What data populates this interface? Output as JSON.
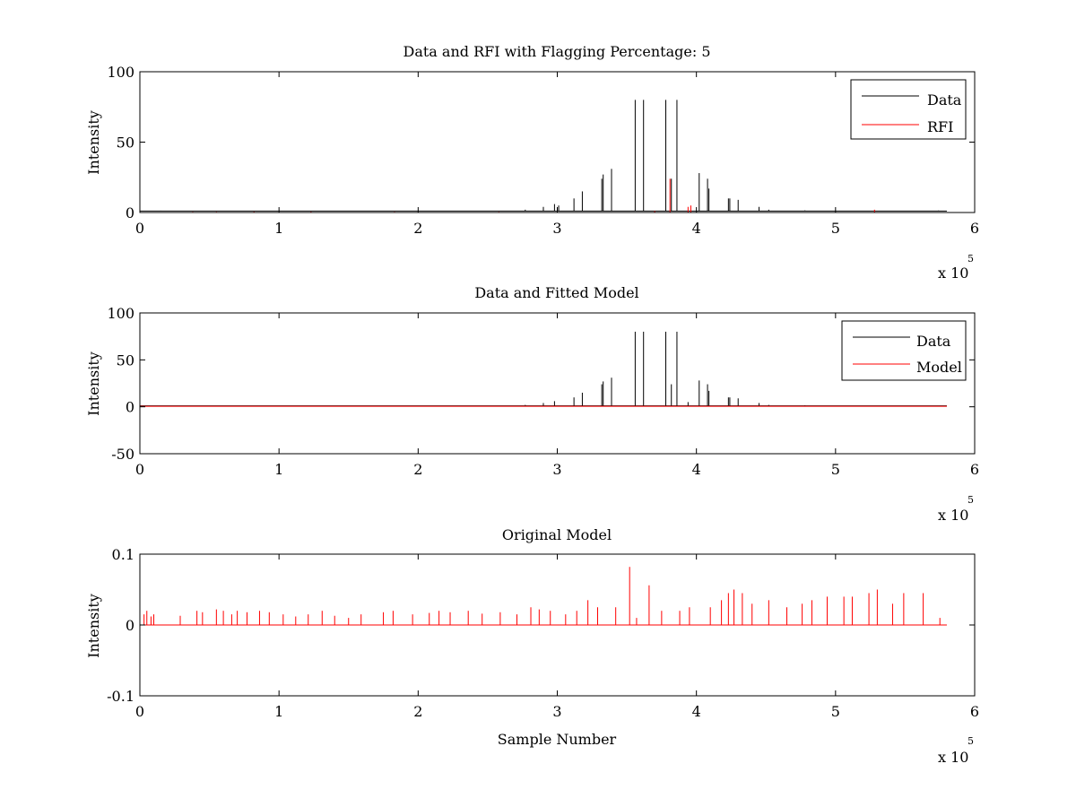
{
  "colors": {
    "data": "#000000",
    "rfi": "#ff0000",
    "model": "#ff0000",
    "axes": "#000000",
    "background": "#ffffff"
  },
  "chart_data": [
    {
      "type": "line",
      "title": "Data and RFI with Flagging Percentage: 5",
      "xlabel": "",
      "ylabel": "Intensity",
      "xlim": [
        0,
        600000
      ],
      "ylim": [
        0,
        100
      ],
      "xticks": [
        0,
        1,
        2,
        3,
        4,
        5,
        6
      ],
      "yticks": [
        0,
        50,
        100
      ],
      "x_exponent": {
        "base": "x 10",
        "power": "5"
      },
      "legend": {
        "position": "top-right",
        "entries": [
          "Data",
          "RFI"
        ]
      },
      "grid": false,
      "series": [
        {
          "name": "Data",
          "color": "#000000",
          "baseline": 1,
          "spikes": [
            [
              15000,
              1.3
            ],
            [
              18000,
              1
            ],
            [
              255000,
              1
            ],
            [
              277000,
              2
            ],
            [
              290000,
              4
            ],
            [
              298000,
              6
            ],
            [
              301000,
              5
            ],
            [
              312000,
              10
            ],
            [
              318000,
              15
            ],
            [
              332000,
              24
            ],
            [
              333000,
              27
            ],
            [
              339000,
              31
            ],
            [
              356000,
              80
            ],
            [
              362000,
              80
            ],
            [
              378000,
              80
            ],
            [
              382000,
              24
            ],
            [
              386000,
              80
            ],
            [
              402000,
              28
            ],
            [
              408000,
              24
            ],
            [
              409000,
              17
            ],
            [
              423000,
              10
            ],
            [
              424000,
              10
            ],
            [
              430000,
              9
            ],
            [
              445000,
              4
            ],
            [
              452000,
              2
            ],
            [
              470000,
              1
            ],
            [
              478000,
              1.5
            ],
            [
              492000,
              1
            ],
            [
              530000,
              1
            ],
            [
              574000,
              1.4
            ],
            [
              578000,
              1.2
            ]
          ]
        },
        {
          "name": "RFI",
          "color": "#ff0000",
          "baseline": 0,
          "spikes": [
            [
              38000,
              0.5
            ],
            [
              55000,
              0.5
            ],
            [
              82000,
              0.6
            ],
            [
              123000,
              0.6
            ],
            [
              183000,
              0.5
            ],
            [
              258000,
              0.5
            ],
            [
              370000,
              1
            ],
            [
              381000,
              24
            ],
            [
              394000,
              4
            ],
            [
              396000,
              5
            ],
            [
              528000,
              2
            ]
          ]
        }
      ]
    },
    {
      "type": "line",
      "title": "Data and Fitted Model",
      "xlabel": "",
      "ylabel": "Intensity",
      "xlim": [
        0,
        600000
      ],
      "ylim": [
        -50,
        100
      ],
      "xticks": [
        0,
        1,
        2,
        3,
        4,
        5,
        6
      ],
      "yticks": [
        -50,
        0,
        50,
        100
      ],
      "x_exponent": {
        "base": "x 10",
        "power": "5"
      },
      "legend": {
        "position": "top-right",
        "entries": [
          "Data",
          "Model"
        ]
      },
      "grid": false,
      "series": [
        {
          "name": "Data",
          "color": "#000000",
          "baseline": 1,
          "spikes": [
            [
              255000,
              1
            ],
            [
              277000,
              2
            ],
            [
              290000,
              4
            ],
            [
              298000,
              6
            ],
            [
              312000,
              10
            ],
            [
              318000,
              15
            ],
            [
              332000,
              24
            ],
            [
              333000,
              27
            ],
            [
              339000,
              31
            ],
            [
              356000,
              80
            ],
            [
              362000,
              80
            ],
            [
              378000,
              80
            ],
            [
              382000,
              24
            ],
            [
              386000,
              80
            ],
            [
              394000,
              5
            ],
            [
              402000,
              28
            ],
            [
              408000,
              24
            ],
            [
              409000,
              17
            ],
            [
              423000,
              10
            ],
            [
              424000,
              10
            ],
            [
              430000,
              9
            ],
            [
              445000,
              4
            ],
            [
              452000,
              2
            ],
            [
              470000,
              1
            ],
            [
              478000,
              1.5
            ],
            [
              492000,
              1
            ],
            [
              530000,
              1
            ]
          ]
        },
        {
          "name": "Model",
          "color": "#ff0000",
          "baseline": 0.5,
          "spikes": []
        }
      ]
    },
    {
      "type": "line",
      "title": "Original Model",
      "xlabel": "Sample Number",
      "ylabel": "Intensity",
      "xlim": [
        0,
        600000
      ],
      "ylim": [
        -0.1,
        0.1
      ],
      "xticks": [
        0,
        1,
        2,
        3,
        4,
        5,
        6
      ],
      "yticks": [
        -0.1,
        0,
        0.1
      ],
      "ytick_labels": [
        "-0.1",
        "0",
        "0.1"
      ],
      "x_exponent": {
        "base": "x 10",
        "power": "5"
      },
      "grid": false,
      "series": [
        {
          "name": "",
          "color": "#ff0000",
          "baseline": 0,
          "spikes": [
            [
              3000,
              0.015
            ],
            [
              5000,
              0.02
            ],
            [
              8000,
              0.012
            ],
            [
              10000,
              0.015
            ],
            [
              29000,
              0.013
            ],
            [
              41000,
              0.02
            ],
            [
              45000,
              0.018
            ],
            [
              55000,
              0.022
            ],
            [
              60000,
              0.02
            ],
            [
              66000,
              0.015
            ],
            [
              70000,
              0.02
            ],
            [
              77000,
              0.018
            ],
            [
              86000,
              0.02
            ],
            [
              93000,
              0.018
            ],
            [
              103000,
              0.015
            ],
            [
              112000,
              0.012
            ],
            [
              121000,
              0.015
            ],
            [
              131000,
              0.02
            ],
            [
              140000,
              0.013
            ],
            [
              150000,
              0.01
            ],
            [
              159000,
              0.015
            ],
            [
              175000,
              0.018
            ],
            [
              182000,
              0.02
            ],
            [
              196000,
              0.015
            ],
            [
              208000,
              0.017
            ],
            [
              215000,
              0.02
            ],
            [
              223000,
              0.018
            ],
            [
              236000,
              0.02
            ],
            [
              246000,
              0.016
            ],
            [
              259000,
              0.018
            ],
            [
              271000,
              0.015
            ],
            [
              281000,
              0.025
            ],
            [
              287000,
              0.022
            ],
            [
              295000,
              0.02
            ],
            [
              306000,
              0.015
            ],
            [
              314000,
              0.02
            ],
            [
              322000,
              0.035
            ],
            [
              329000,
              0.025
            ],
            [
              342000,
              0.025
            ],
            [
              352000,
              0.082
            ],
            [
              357000,
              0.01
            ],
            [
              366000,
              0.056
            ],
            [
              375000,
              0.02
            ],
            [
              388000,
              0.02
            ],
            [
              395000,
              0.025
            ],
            [
              410000,
              0.025
            ],
            [
              418000,
              0.035
            ],
            [
              423000,
              0.045
            ],
            [
              427000,
              0.05
            ],
            [
              433000,
              0.045
            ],
            [
              440000,
              0.03
            ],
            [
              452000,
              0.035
            ],
            [
              465000,
              0.025
            ],
            [
              476000,
              0.03
            ],
            [
              483000,
              0.035
            ],
            [
              494000,
              0.04
            ],
            [
              506000,
              0.04
            ],
            [
              512000,
              0.04
            ],
            [
              524000,
              0.045
            ],
            [
              530000,
              0.05
            ],
            [
              541000,
              0.03
            ],
            [
              549000,
              0.045
            ],
            [
              563000,
              0.045
            ],
            [
              575000,
              0.01
            ]
          ]
        }
      ]
    }
  ]
}
